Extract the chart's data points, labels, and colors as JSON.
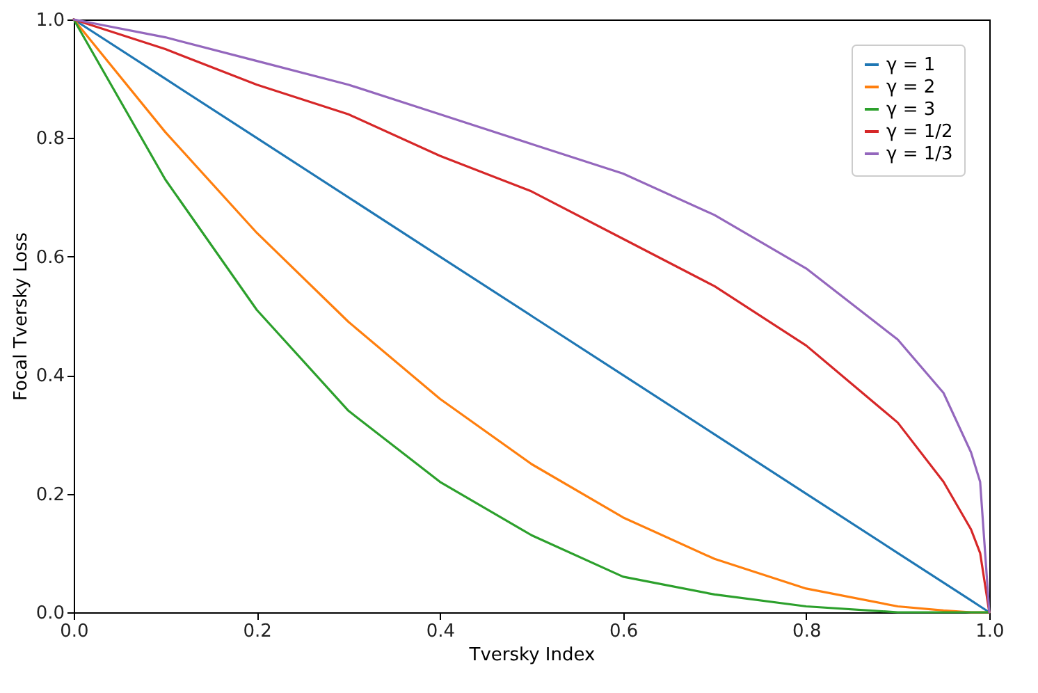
{
  "chart_data": {
    "type": "line",
    "xlabel": "Tversky Index",
    "ylabel": "Focal Tversky Loss",
    "x": [
      0,
      0.1,
      0.2,
      0.3,
      0.4,
      0.5,
      0.6,
      0.7,
      0.8,
      0.9,
      0.95,
      0.98,
      0.99,
      1
    ],
    "series": [
      {
        "name": "γ = 1",
        "color": "#1f77b4",
        "values": [
          1,
          0.9,
          0.8,
          0.7,
          0.6,
          0.5,
          0.4,
          0.3,
          0.2,
          0.1,
          0.05,
          0.02,
          0.01,
          0
        ]
      },
      {
        "name": "γ = 2",
        "color": "#ff7f0e",
        "values": [
          1,
          0.81,
          0.64,
          0.49,
          0.36,
          0.25,
          0.16,
          0.09,
          0.04,
          0.01,
          0.003,
          0,
          0,
          0
        ]
      },
      {
        "name": "γ = 3",
        "color": "#2ca02c",
        "values": [
          1,
          0.73,
          0.51,
          0.34,
          0.22,
          0.13,
          0.06,
          0.03,
          0.01,
          0,
          0,
          0,
          0,
          0
        ]
      },
      {
        "name": "γ = 1/2",
        "color": "#d62728",
        "values": [
          1,
          0.95,
          0.89,
          0.84,
          0.77,
          0.71,
          0.63,
          0.55,
          0.45,
          0.32,
          0.22,
          0.14,
          0.1,
          0
        ]
      },
      {
        "name": "γ = 1/3",
        "color": "#9467bd",
        "values": [
          1,
          0.97,
          0.93,
          0.89,
          0.84,
          0.79,
          0.74,
          0.67,
          0.58,
          0.46,
          0.37,
          0.27,
          0.22,
          0
        ]
      }
    ],
    "xlim": [
      0,
      1
    ],
    "ylim": [
      0,
      1
    ],
    "xticks": [
      {
        "value": 0,
        "label": "0.0"
      },
      0.2,
      0.4,
      0.6,
      0.8,
      {
        "value": 1,
        "label": "1.0"
      }
    ],
    "yticks": [
      {
        "value": 0,
        "label": "0.0"
      },
      0.2,
      0.4,
      0.6,
      0.8,
      {
        "value": 1,
        "label": "1.0"
      }
    ],
    "legend": "top right",
    "grid": false,
    "line_style": "solid",
    "marker": "none"
  }
}
